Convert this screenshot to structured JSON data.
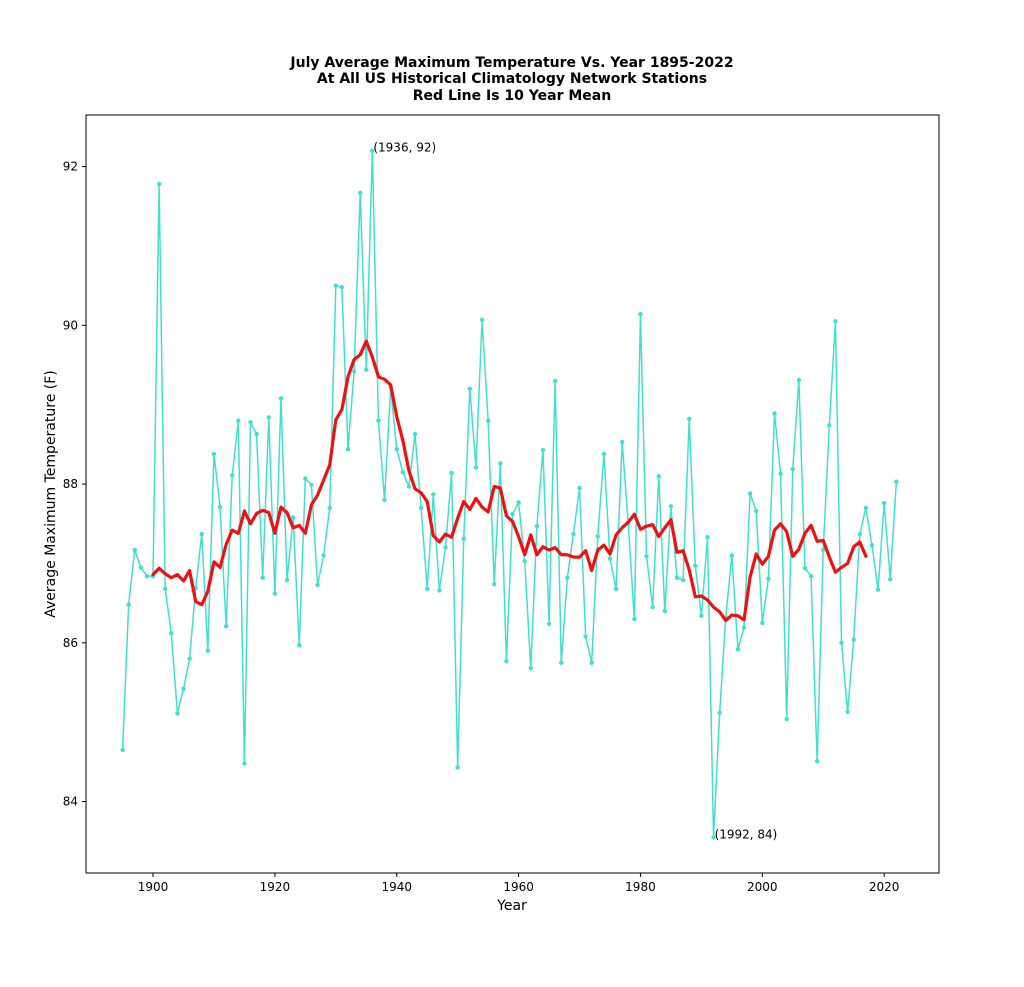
{
  "chart_data": {
    "type": "line",
    "title_lines": [
      "July Average Maximum Temperature Vs. Year 1895-2022",
      "At All US Historical Climatology Network Stations",
      "Red Line Is 10 Year Mean"
    ],
    "xlabel": "Year",
    "ylabel": "Average Maximum Temperature (F)",
    "xlim": [
      1889,
      2029
    ],
    "ylim": [
      83.1,
      92.65
    ],
    "x_ticks": [
      1900,
      1920,
      1940,
      1960,
      1980,
      2000,
      2020
    ],
    "y_ticks": [
      84,
      86,
      88,
      90,
      92
    ],
    "grid": false,
    "series": [
      {
        "color": "#40e0d0",
        "style": "line-with-dot-markers",
        "x": [
          1895,
          1896,
          1897,
          1898,
          1899,
          1900,
          1901,
          1902,
          1903,
          1904,
          1905,
          1906,
          1907,
          1908,
          1909,
          1910,
          1911,
          1912,
          1913,
          1914,
          1915,
          1916,
          1917,
          1918,
          1919,
          1920,
          1921,
          1922,
          1923,
          1924,
          1925,
          1926,
          1927,
          1928,
          1929,
          1930,
          1931,
          1932,
          1933,
          1934,
          1935,
          1936,
          1937,
          1938,
          1939,
          1940,
          1941,
          1942,
          1943,
          1944,
          1945,
          1946,
          1947,
          1948,
          1949,
          1950,
          1951,
          1952,
          1953,
          1954,
          1955,
          1956,
          1957,
          1958,
          1959,
          1960,
          1961,
          1962,
          1963,
          1964,
          1965,
          1966,
          1967,
          1968,
          1969,
          1970,
          1971,
          1972,
          1973,
          1974,
          1975,
          1976,
          1977,
          1978,
          1979,
          1980,
          1981,
          1982,
          1983,
          1984,
          1985,
          1986,
          1987,
          1988,
          1989,
          1990,
          1991,
          1992,
          1993,
          1994,
          1995,
          1996,
          1997,
          1998,
          1999,
          2000,
          2001,
          2002,
          2003,
          2004,
          2005,
          2006,
          2007,
          2008,
          2009,
          2010,
          2011,
          2012,
          2013,
          2014,
          2015,
          2016,
          2017,
          2018,
          2019,
          2020,
          2021,
          2022
        ],
        "values": [
          84.65,
          86.48,
          87.17,
          86.95,
          86.84,
          86.84,
          91.78,
          86.68,
          86.12,
          85.11,
          85.42,
          85.8,
          86.69,
          87.37,
          85.9,
          88.38,
          87.71,
          86.21,
          88.11,
          88.8,
          84.48,
          88.78,
          88.63,
          86.82,
          88.84,
          86.62,
          89.08,
          86.79,
          87.58,
          85.97,
          88.07,
          87.99,
          86.73,
          87.1,
          87.7,
          90.5,
          90.48,
          88.44,
          89.42,
          91.67,
          89.44,
          92.2,
          88.8,
          87.8,
          89.22,
          88.44,
          88.15,
          87.97,
          88.63,
          87.7,
          86.68,
          87.87,
          86.66,
          87.2,
          88.14,
          84.43,
          87.31,
          89.2,
          88.21,
          90.07,
          88.8,
          86.74,
          88.26,
          85.77,
          87.62,
          87.77,
          87.03,
          85.68,
          87.47,
          88.43,
          86.24,
          89.3,
          85.75,
          86.82,
          87.37,
          87.95,
          86.08,
          85.75,
          87.34,
          88.38,
          87.06,
          86.68,
          88.53,
          87.5,
          86.3,
          90.14,
          87.09,
          86.45,
          88.1,
          86.4,
          87.72,
          86.82,
          86.79,
          88.82,
          86.97,
          86.34,
          87.33,
          83.55,
          85.12,
          86.32,
          87.1,
          85.92,
          86.19,
          87.88,
          87.66,
          86.25,
          86.81,
          88.89,
          88.13,
          85.04,
          88.19,
          89.31,
          86.94,
          86.84,
          84.51,
          87.17,
          88.74,
          90.05,
          86.0,
          85.13,
          86.04,
          87.37,
          87.7,
          87.23,
          86.67,
          87.76,
          86.8,
          88.03
        ]
      },
      {
        "color": "#ee1111",
        "style": "thick-line",
        "x": [
          1900,
          1901,
          1902,
          1903,
          1904,
          1905,
          1906,
          1907,
          1908,
          1909,
          1910,
          1911,
          1912,
          1913,
          1914,
          1915,
          1916,
          1917,
          1918,
          1919,
          1920,
          1921,
          1922,
          1923,
          1924,
          1925,
          1926,
          1927,
          1928,
          1929,
          1930,
          1931,
          1932,
          1933,
          1934,
          1935,
          1936,
          1937,
          1938,
          1939,
          1940,
          1941,
          1942,
          1943,
          1944,
          1945,
          1946,
          1947,
          1948,
          1949,
          1950,
          1951,
          1952,
          1953,
          1954,
          1955,
          1956,
          1957,
          1958,
          1959,
          1960,
          1961,
          1962,
          1963,
          1964,
          1965,
          1966,
          1967,
          1968,
          1969,
          1970,
          1971,
          1972,
          1973,
          1974,
          1975,
          1976,
          1977,
          1978,
          1979,
          1980,
          1981,
          1982,
          1983,
          1984,
          1985,
          1986,
          1987,
          1988,
          1989,
          1990,
          1991,
          1992,
          1993,
          1994,
          1995,
          1996,
          1997,
          1998,
          1999,
          2000,
          2001,
          2002,
          2003,
          2004,
          2005,
          2006,
          2007,
          2008,
          2009,
          2010,
          2011,
          2012,
          2013,
          2014,
          2015,
          2016,
          2017
        ],
        "values": [
          86.86,
          86.94,
          86.87,
          86.82,
          86.86,
          86.78,
          86.91,
          86.52,
          86.48,
          86.65,
          87.02,
          86.95,
          87.24,
          87.42,
          87.38,
          87.66,
          87.5,
          87.63,
          87.67,
          87.64,
          87.38,
          87.71,
          87.64,
          87.45,
          87.48,
          87.38,
          87.74,
          87.86,
          88.05,
          88.24,
          88.81,
          88.94,
          89.35,
          89.57,
          89.63,
          89.8,
          89.6,
          89.35,
          89.32,
          89.25,
          88.85,
          88.55,
          88.17,
          87.94,
          87.89,
          87.78,
          87.35,
          87.27,
          87.37,
          87.33,
          87.57,
          87.78,
          87.68,
          87.82,
          87.71,
          87.65,
          87.97,
          87.95,
          87.6,
          87.53,
          87.34,
          87.11,
          87.36,
          87.11,
          87.21,
          87.17,
          87.2,
          87.11,
          87.11,
          87.08,
          87.08,
          87.16,
          86.91,
          87.17,
          87.23,
          87.12,
          87.36,
          87.45,
          87.52,
          87.62,
          87.43,
          87.47,
          87.49,
          87.34,
          87.45,
          87.55,
          87.14,
          87.16,
          86.92,
          86.58,
          86.59,
          86.54,
          86.45,
          86.39,
          86.28,
          86.35,
          86.34,
          86.29,
          86.83,
          87.12,
          86.99,
          87.09,
          87.42,
          87.5,
          87.4,
          87.09,
          87.18,
          87.38,
          87.48,
          87.28,
          87.29,
          87.08,
          86.89,
          86.95,
          87.0,
          87.21,
          87.27,
          87.09
        ]
      }
    ],
    "annotations": [
      {
        "text": "(1936, 92)",
        "x": 1936,
        "y": 92.2
      },
      {
        "text": "(1992, 84)",
        "x": 1992,
        "y": 83.55
      }
    ]
  }
}
